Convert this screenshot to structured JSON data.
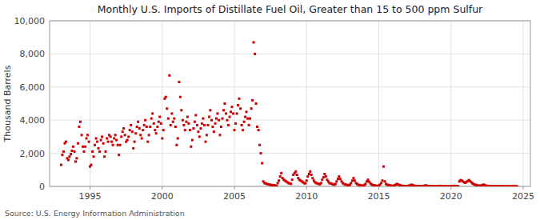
{
  "chart_data": {
    "type": "scatter",
    "title": "Monthly U.S. Imports of Distillate Fuel Oil, Greater than 15 to 500 ppm Sulfur",
    "ylabel": "Thousand Barrels",
    "source": "Source: U.S. Energy Information Administration",
    "color": "#cc0000",
    "marker": "square",
    "grid": true,
    "xlim": [
      1992.2,
      2025.5
    ],
    "ylim": [
      0,
      10000
    ],
    "xticks": [
      1995,
      2000,
      2005,
      2010,
      2015,
      2020,
      2025
    ],
    "yticks": [
      0,
      {
        "value": 2000,
        "label": "2,000"
      },
      {
        "value": 4000,
        "label": "4,000"
      },
      {
        "value": 6000,
        "label": "6,000"
      },
      {
        "value": 8000,
        "label": "8,000"
      },
      {
        "value": 10000,
        "label": "10,000"
      }
    ],
    "x": [
      1993.0,
      1993.08,
      1993.17,
      1993.25,
      1993.33,
      1993.42,
      1993.5,
      1993.58,
      1993.67,
      1993.75,
      1993.83,
      1993.92,
      1994.0,
      1994.08,
      1994.17,
      1994.25,
      1994.33,
      1994.42,
      1994.5,
      1994.58,
      1994.67,
      1994.75,
      1994.83,
      1994.92,
      1995.0,
      1995.08,
      1995.17,
      1995.25,
      1995.33,
      1995.42,
      1995.5,
      1995.58,
      1995.67,
      1995.75,
      1995.83,
      1995.92,
      1996.0,
      1996.08,
      1996.17,
      1996.25,
      1996.33,
      1996.42,
      1996.5,
      1996.58,
      1996.67,
      1996.75,
      1996.83,
      1996.92,
      1997.0,
      1997.08,
      1997.17,
      1997.25,
      1997.33,
      1997.42,
      1997.5,
      1997.58,
      1997.67,
      1997.75,
      1997.83,
      1997.92,
      1998.0,
      1998.08,
      1998.17,
      1998.25,
      1998.33,
      1998.42,
      1998.5,
      1998.58,
      1998.67,
      1998.75,
      1998.83,
      1998.92,
      1999.0,
      1999.08,
      1999.17,
      1999.25,
      1999.33,
      1999.42,
      1999.5,
      1999.58,
      1999.67,
      1999.75,
      1999.83,
      1999.92,
      2000.0,
      2000.08,
      2000.17,
      2000.25,
      2000.33,
      2000.42,
      2000.5,
      2000.58,
      2000.67,
      2000.75,
      2000.83,
      2000.92,
      2001.0,
      2001.08,
      2001.17,
      2001.25,
      2001.33,
      2001.42,
      2001.5,
      2001.58,
      2001.67,
      2001.75,
      2001.83,
      2001.92,
      2002.0,
      2002.08,
      2002.17,
      2002.25,
      2002.33,
      2002.42,
      2002.5,
      2002.58,
      2002.67,
      2002.75,
      2002.83,
      2002.92,
      2003.0,
      2003.08,
      2003.17,
      2003.25,
      2003.33,
      2003.42,
      2003.5,
      2003.58,
      2003.67,
      2003.75,
      2003.83,
      2003.92,
      2004.0,
      2004.08,
      2004.17,
      2004.25,
      2004.33,
      2004.42,
      2004.5,
      2004.58,
      2004.67,
      2004.75,
      2004.83,
      2004.92,
      2005.0,
      2005.08,
      2005.17,
      2005.25,
      2005.33,
      2005.42,
      2005.5,
      2005.58,
      2005.67,
      2005.75,
      2005.83,
      2005.92,
      2006.0,
      2006.08,
      2006.17,
      2006.25,
      2006.33,
      2006.42,
      2006.5,
      2006.58,
      2006.67,
      2006.75,
      2006.83,
      2006.92,
      2007.0,
      2007.08,
      2007.17,
      2007.25,
      2007.33,
      2007.42,
      2007.5,
      2007.58,
      2007.67,
      2007.75,
      2007.83,
      2007.92,
      2008.0,
      2008.08,
      2008.17,
      2008.25,
      2008.33,
      2008.42,
      2008.5,
      2008.58,
      2008.67,
      2008.75,
      2008.83,
      2008.92,
      2009.0,
      2009.08,
      2009.17,
      2009.25,
      2009.33,
      2009.42,
      2009.5,
      2009.58,
      2009.67,
      2009.75,
      2009.83,
      2009.92,
      2010.0,
      2010.08,
      2010.17,
      2010.25,
      2010.33,
      2010.42,
      2010.5,
      2010.58,
      2010.67,
      2010.75,
      2010.83,
      2010.92,
      2011.0,
      2011.08,
      2011.17,
      2011.25,
      2011.33,
      2011.42,
      2011.5,
      2011.58,
      2011.67,
      2011.75,
      2011.83,
      2011.92,
      2012.0,
      2012.08,
      2012.17,
      2012.25,
      2012.33,
      2012.42,
      2012.5,
      2012.58,
      2012.67,
      2012.75,
      2012.83,
      2012.92,
      2013.0,
      2013.08,
      2013.17,
      2013.25,
      2013.33,
      2013.42,
      2013.5,
      2013.58,
      2013.67,
      2013.75,
      2013.83,
      2013.92,
      2014.0,
      2014.08,
      2014.17,
      2014.25,
      2014.33,
      2014.42,
      2014.5,
      2014.58,
      2014.67,
      2014.75,
      2014.83,
      2014.92,
      2015.0,
      2015.08,
      2015.17,
      2015.25,
      2015.33,
      2015.42,
      2015.5,
      2015.58,
      2015.67,
      2015.75,
      2015.83,
      2015.92,
      2016.0,
      2016.08,
      2016.17,
      2016.25,
      2016.33,
      2016.42,
      2016.5,
      2016.58,
      2016.67,
      2016.75,
      2016.83,
      2016.92,
      2017.0,
      2017.08,
      2017.17,
      2017.25,
      2017.33,
      2017.42,
      2017.5,
      2017.58,
      2017.67,
      2017.75,
      2017.83,
      2017.92,
      2018.0,
      2018.08,
      2018.17,
      2018.25,
      2018.33,
      2018.42,
      2018.5,
      2018.58,
      2018.67,
      2018.75,
      2018.83,
      2018.92,
      2019.0,
      2019.08,
      2019.17,
      2019.25,
      2019.33,
      2019.42,
      2019.5,
      2019.58,
      2019.67,
      2019.75,
      2019.83,
      2019.92,
      2020.0,
      2020.08,
      2020.17,
      2020.25,
      2020.33,
      2020.42,
      2020.5,
      2020.58,
      2020.67,
      2020.75,
      2020.83,
      2020.92,
      2021.0,
      2021.08,
      2021.17,
      2021.25,
      2021.33,
      2021.42,
      2021.5,
      2021.58,
      2021.67,
      2021.75,
      2021.83,
      2021.92,
      2022.0,
      2022.08,
      2022.17,
      2022.25,
      2022.33,
      2022.42,
      2022.5,
      2022.58,
      2022.67,
      2022.75,
      2022.83,
      2022.92,
      2023.0,
      2023.08,
      2023.17,
      2023.25,
      2023.33,
      2023.42,
      2023.5,
      2023.58,
      2023.67,
      2023.75,
      2023.83,
      2023.92,
      2024.0,
      2024.08,
      2024.17,
      2024.25,
      2024.33,
      2024.42,
      2024.5,
      2024.58
    ],
    "values": [
      1300,
      1900,
      2100,
      2600,
      2700,
      1700,
      1600,
      1800,
      1950,
      2150,
      2400,
      2100,
      1500,
      1700,
      2600,
      3600,
      3900,
      3100,
      2400,
      2100,
      2400,
      2900,
      3100,
      2700,
      1200,
      1300,
      2100,
      1800,
      2500,
      2900,
      2700,
      2300,
      2100,
      2800,
      3000,
      2600,
      1800,
      2100,
      2900,
      2700,
      3100,
      3000,
      2700,
      2500,
      2900,
      3100,
      2800,
      2500,
      1900,
      2500,
      3000,
      3300,
      3500,
      3100,
      2700,
      2800,
      3000,
      3400,
      3700,
      3300,
      2300,
      2700,
      3200,
      3600,
      3900,
      3500,
      3100,
      2900,
      3400,
      3700,
      4000,
      3600,
      2700,
      3100,
      3600,
      4100,
      4400,
      3800,
      3400,
      3200,
      3600,
      3900,
      4200,
      3800,
      2900,
      3400,
      5300,
      5400,
      4700,
      4100,
      6700,
      3700,
      4400,
      3900,
      4100,
      3600,
      2500,
      2900,
      6300,
      5400,
      4600,
      4000,
      3700,
      3400,
      3900,
      4200,
      3800,
      3400,
      2400,
      2800,
      3500,
      3900,
      4300,
      3700,
      3300,
      3000,
      3500,
      3800,
      4100,
      3700,
      2700,
      3100,
      3700,
      4200,
      4600,
      4000,
      3600,
      3300,
      3800,
      4100,
      4400,
      4000,
      3100,
      3600,
      4100,
      4600,
      5000,
      4400,
      4000,
      3700,
      4200,
      4500,
      4800,
      4400,
      3400,
      3800,
      4400,
      4900,
      5300,
      4700,
      3700,
      3400,
      3900,
      4200,
      4500,
      4100,
      3700,
      4100,
      4700,
      5200,
      8700,
      8000,
      5000,
      3600,
      3400,
      2500,
      2000,
      1400,
      300,
      200,
      180,
      150,
      130,
      110,
      90,
      80,
      70,
      60,
      50,
      40,
      200,
      350,
      600,
      800,
      500,
      400,
      350,
      300,
      250,
      200,
      180,
      150,
      400,
      700,
      800,
      900,
      700,
      500,
      400,
      350,
      300,
      250,
      200,
      180,
      350,
      600,
      750,
      900,
      700,
      500,
      350,
      250,
      200,
      180,
      150,
      130,
      200,
      400,
      550,
      750,
      600,
      400,
      300,
      200,
      180,
      150,
      130,
      100,
      150,
      300,
      450,
      600,
      450,
      300,
      200,
      150,
      120,
      100,
      80,
      60,
      100,
      200,
      350,
      500,
      350,
      200,
      150,
      100,
      80,
      60,
      50,
      40,
      80,
      150,
      300,
      400,
      280,
      180,
      120,
      80,
      60,
      50,
      40,
      30,
      50,
      100,
      200,
      350,
      1200,
      300,
      150,
      100,
      80,
      60,
      50,
      40,
      30,
      60,
      100,
      150,
      120,
      80,
      50,
      40,
      30,
      25,
      20,
      15,
      20,
      40,
      70,
      100,
      80,
      50,
      30,
      20,
      15,
      10,
      8,
      6,
      10,
      20,
      40,
      60,
      40,
      25,
      15,
      10,
      8,
      6,
      5,
      4,
      5,
      10,
      20,
      30,
      20,
      12,
      8,
      5,
      4,
      3,
      2,
      2,
      5,
      10,
      20,
      30,
      20,
      12,
      8,
      300,
      380,
      350,
      290,
      240,
      220,
      280,
      330,
      380,
      310,
      240,
      180,
      130,
      100,
      80,
      60,
      45,
      30,
      50,
      80,
      110,
      80,
      50,
      30,
      20,
      15,
      10,
      8,
      5,
      5,
      8,
      12,
      18,
      12,
      8,
      5,
      4,
      3,
      2,
      2,
      1,
      2,
      3,
      4,
      5,
      4,
      3,
      2,
      1
    ]
  }
}
